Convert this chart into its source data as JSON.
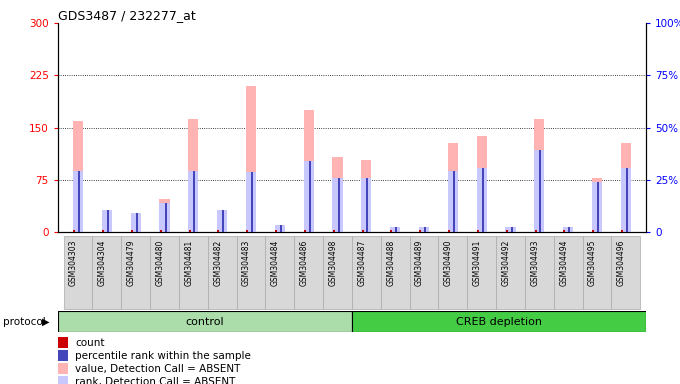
{
  "title": "GDS3487 / 232277_at",
  "samples": [
    "GSM304303",
    "GSM304304",
    "GSM304479",
    "GSM304480",
    "GSM304481",
    "GSM304482",
    "GSM304483",
    "GSM304484",
    "GSM304486",
    "GSM304498",
    "GSM304487",
    "GSM304488",
    "GSM304489",
    "GSM304490",
    "GSM304491",
    "GSM304492",
    "GSM304493",
    "GSM304494",
    "GSM304495",
    "GSM304496"
  ],
  "n_control": 10,
  "n_creb": 10,
  "value_absent": [
    160,
    30,
    25,
    48,
    162,
    28,
    210,
    10,
    175,
    108,
    103,
    8,
    8,
    128,
    138,
    8,
    162,
    8,
    78,
    128
  ],
  "rank_absent": [
    88,
    32,
    28,
    42,
    88,
    32,
    86,
    10,
    102,
    78,
    78,
    8,
    8,
    88,
    92,
    8,
    118,
    8,
    72,
    92
  ],
  "count_val": [
    3,
    3,
    3,
    3,
    3,
    3,
    3,
    3,
    3,
    3,
    3,
    3,
    3,
    3,
    3,
    3,
    3,
    3,
    3,
    3
  ],
  "percentile_val": [
    88,
    32,
    28,
    42,
    88,
    32,
    86,
    10,
    102,
    78,
    78,
    8,
    8,
    88,
    92,
    8,
    118,
    8,
    72,
    92
  ],
  "ylim_left": [
    0,
    300
  ],
  "ylim_right": [
    0,
    100
  ],
  "yticks_left": [
    0,
    75,
    150,
    225,
    300
  ],
  "yticks_right": [
    0,
    25,
    50,
    75,
    100
  ],
  "color_value_absent": "#ffb3b3",
  "color_rank_absent": "#c8c8ff",
  "color_count": "#cc0000",
  "color_percentile": "#4444bb",
  "bg_xticklabels": "#d8d8d8",
  "color_group_control_light": "#bbeebb",
  "color_group_control_dark": "#55cc55",
  "color_group_creb_light": "#55cc55",
  "color_group_creb_dark": "#55cc55",
  "group_control_color": "#aaddaa",
  "group_creb_color": "#44cc44",
  "legend_items": [
    {
      "label": "count",
      "color": "#cc0000"
    },
    {
      "label": "percentile rank within the sample",
      "color": "#4444bb"
    },
    {
      "label": "value, Detection Call = ABSENT",
      "color": "#ffb3b3"
    },
    {
      "label": "rank, Detection Call = ABSENT",
      "color": "#c8c8ff"
    }
  ]
}
